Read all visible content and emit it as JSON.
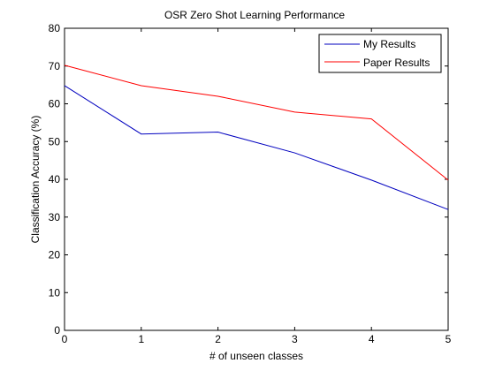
{
  "chart_data": {
    "type": "line",
    "title": "OSR Zero Shot Learning Performance",
    "xlabel": "# of unseen classes",
    "ylabel": "Classification Accuracy (%)",
    "xlim": [
      0,
      5
    ],
    "ylim": [
      0,
      80
    ],
    "xticks": [
      0,
      1,
      2,
      3,
      4,
      5
    ],
    "yticks": [
      0,
      10,
      20,
      30,
      40,
      50,
      60,
      70,
      80
    ],
    "grid": false,
    "legend_position": "top-right",
    "x": [
      0,
      1,
      2,
      3,
      4,
      5
    ],
    "series": [
      {
        "name": "My Results",
        "color": "#0000bf",
        "values": [
          64.8,
          52.0,
          52.5,
          47.0,
          39.8,
          32.0
        ]
      },
      {
        "name": "Paper Results",
        "color": "#ff0000",
        "values": [
          70.2,
          64.8,
          62.0,
          57.8,
          56.0,
          39.8
        ]
      }
    ]
  }
}
